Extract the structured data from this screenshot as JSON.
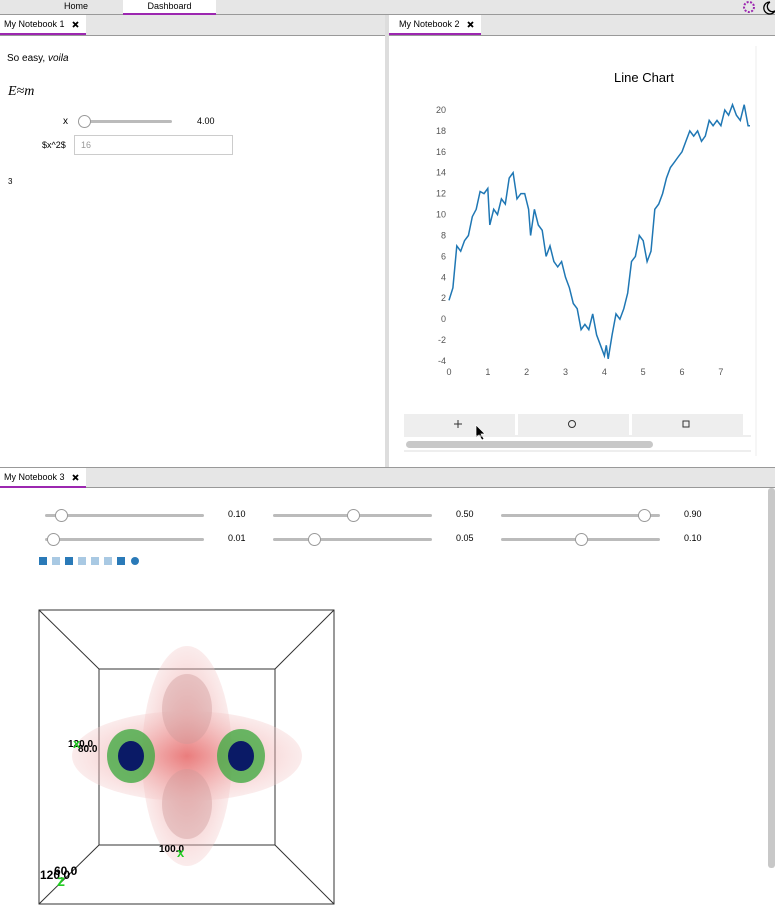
{
  "top_bar": {
    "tabs": [
      "Home",
      "Dashboard"
    ]
  },
  "notebook_1": {
    "tab": "My Notebook 1",
    "text": "So easy, ",
    "text_emphasis": "voila",
    "equation": "E≈m",
    "slider": {
      "label": "x",
      "readout": "4.00"
    },
    "input": {
      "label": "$x^2$",
      "value": "16"
    },
    "output": "3"
  },
  "notebook_2": {
    "tab": "My Notebook 2"
  },
  "chart_data": {
    "type": "line",
    "title": "Line Chart",
    "color": "#1f77b4",
    "x": [
      0,
      0.1,
      0.2,
      0.3,
      0.4,
      0.5,
      0.6,
      0.7,
      0.8,
      0.9,
      1.0,
      1.05,
      1.15,
      1.25,
      1.35,
      1.45,
      1.55,
      1.65,
      1.75,
      1.85,
      1.95,
      2.05,
      2.1,
      2.2,
      2.3,
      2.4,
      2.5,
      2.6,
      2.7,
      2.8,
      2.9,
      3.0,
      3.1,
      3.2,
      3.3,
      3.4,
      3.5,
      3.6,
      3.7,
      3.8,
      3.9,
      4.0,
      4.05,
      4.1,
      4.2,
      4.3,
      4.4,
      4.5,
      4.6,
      4.7,
      4.8,
      4.9,
      5.0,
      5.1,
      5.2,
      5.3,
      5.4,
      5.5,
      5.6,
      5.7,
      5.8,
      5.9,
      6.0,
      6.1,
      6.2,
      6.3,
      6.4,
      6.5,
      6.6,
      6.7,
      6.8,
      6.9,
      7.0,
      7.1,
      7.2,
      7.3,
      7.4,
      7.5,
      7.6,
      7.7,
      7.75
    ],
    "values": [
      1.8,
      3,
      7,
      6.5,
      7.5,
      8,
      9.8,
      10.5,
      12.2,
      12,
      12.5,
      9,
      10.5,
      10,
      11.5,
      11,
      13.5,
      14,
      11.5,
      12,
      12,
      10.5,
      8,
      10.5,
      9,
      8.5,
      6,
      7,
      5.5,
      5,
      5.5,
      4,
      3,
      1.5,
      1,
      -1,
      -0.5,
      -1,
      0.5,
      -1.5,
      -2.5,
      -3.5,
      -2.5,
      -3.8,
      -1.5,
      0.5,
      0,
      1,
      2.5,
      5.5,
      6,
      8,
      7.5,
      5.5,
      6.5,
      10.5,
      11,
      12,
      13.5,
      14.5,
      15,
      15.5,
      16,
      17,
      18,
      17.5,
      18,
      17,
      17.5,
      19,
      18.5,
      19,
      18.5,
      20,
      19.5,
      20.5,
      19.5,
      19,
      20.5,
      18.5,
      18.5
    ],
    "xlim": [
      0,
      7.75
    ],
    "ylim": [
      -4,
      21
    ],
    "xticks": [
      0,
      1,
      2,
      3,
      4,
      5,
      6,
      7
    ],
    "yticks": [
      -4,
      -2,
      0,
      2,
      4,
      6,
      8,
      10,
      12,
      14,
      16,
      18,
      20
    ]
  },
  "notebook_3": {
    "tab": "My Notebook 3",
    "sliders": [
      "0.10",
      "0.50",
      "0.90",
      "0.01",
      "0.05",
      "0.10"
    ],
    "volume_labels": [
      "120.0",
      "80.0",
      "100.0",
      "120.0",
      "60.0"
    ],
    "axis_letters": [
      "x",
      "x",
      "z"
    ]
  }
}
